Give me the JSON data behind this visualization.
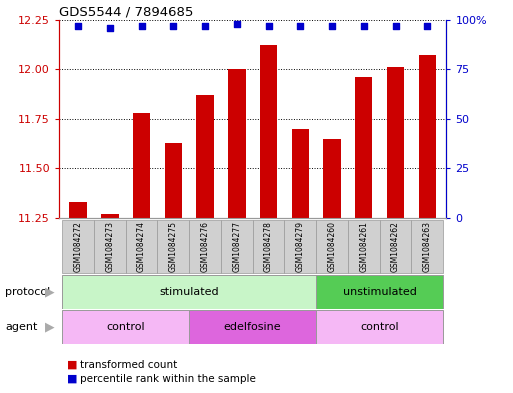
{
  "title": "GDS5544 / 7894685",
  "samples": [
    "GSM1084272",
    "GSM1084273",
    "GSM1084274",
    "GSM1084275",
    "GSM1084276",
    "GSM1084277",
    "GSM1084278",
    "GSM1084279",
    "GSM1084260",
    "GSM1084261",
    "GSM1084262",
    "GSM1084263"
  ],
  "bar_values": [
    11.33,
    11.27,
    11.78,
    11.63,
    11.87,
    12.0,
    12.12,
    11.7,
    11.65,
    11.96,
    12.01,
    12.07
  ],
  "dot_values": [
    97,
    96,
    97,
    97,
    97,
    98,
    97,
    97,
    97,
    97,
    97,
    97
  ],
  "ylim_left": [
    11.25,
    12.25
  ],
  "ylim_right": [
    0,
    100
  ],
  "yticks_left": [
    11.25,
    11.5,
    11.75,
    12.0,
    12.25
  ],
  "yticks_right": [
    0,
    25,
    50,
    75,
    100
  ],
  "bar_color": "#cc0000",
  "dot_color": "#0000cc",
  "bar_bottom": 11.25,
  "protocol_labels": [
    {
      "text": "stimulated",
      "start": 0,
      "end": 7,
      "color": "#c8f5c8"
    },
    {
      "text": "unstimulated",
      "start": 8,
      "end": 11,
      "color": "#55cc55"
    }
  ],
  "agent_labels": [
    {
      "text": "control",
      "start": 0,
      "end": 3,
      "color": "#f5b8f5"
    },
    {
      "text": "edelfosine",
      "start": 4,
      "end": 7,
      "color": "#dd66dd"
    },
    {
      "text": "control",
      "start": 8,
      "end": 11,
      "color": "#f5b8f5"
    }
  ],
  "legend_items": [
    {
      "label": "transformed count",
      "color": "#cc0000"
    },
    {
      "label": "percentile rank within the sample",
      "color": "#0000cc"
    }
  ],
  "protocol_label": "protocol",
  "agent_label": "agent",
  "bg_color": "#ffffff",
  "tick_label_color_left": "#cc0000",
  "tick_label_color_right": "#0000cc",
  "sample_box_color": "#d0d0d0",
  "sample_box_edge": "#999999"
}
